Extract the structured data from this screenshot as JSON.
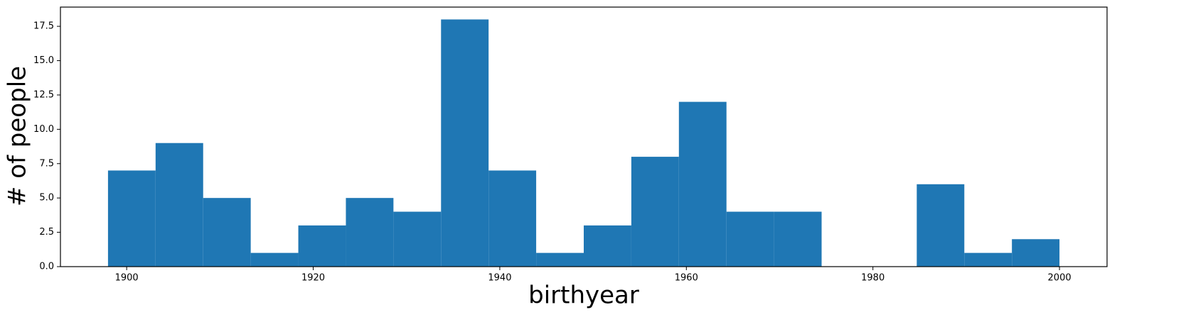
{
  "chart_data": {
    "type": "histogram",
    "xlabel": "birthyear",
    "ylabel": "# of people",
    "bins": [
      1898,
      1903.1,
      1908.2,
      1913.3,
      1918.4,
      1923.5,
      1928.6,
      1933.7,
      1938.8,
      1943.9,
      1949,
      1954.1,
      1959.2,
      1964.3,
      1969.4,
      1974.5,
      1979.6,
      1984.7,
      1989.8,
      1994.9,
      2000
    ],
    "values": [
      7,
      9,
      5,
      1,
      3,
      5,
      4,
      18,
      7,
      1,
      3,
      8,
      12,
      4,
      4,
      0,
      0,
      6,
      1,
      2
    ],
    "color": "#1f77b4",
    "xlim": [
      1892.9,
      2005.1
    ],
    "xticks": [
      1900,
      1920,
      1940,
      1960,
      1980,
      2000
    ],
    "ylim": [
      0,
      18.9
    ],
    "yticks": [
      {
        "value": 0,
        "label": "0.0"
      },
      2.5,
      {
        "value": 5,
        "label": "5.0"
      },
      7.5,
      {
        "value": 10,
        "label": "10.0"
      },
      12.5,
      {
        "value": 15,
        "label": "15.0"
      },
      17.5
    ]
  }
}
